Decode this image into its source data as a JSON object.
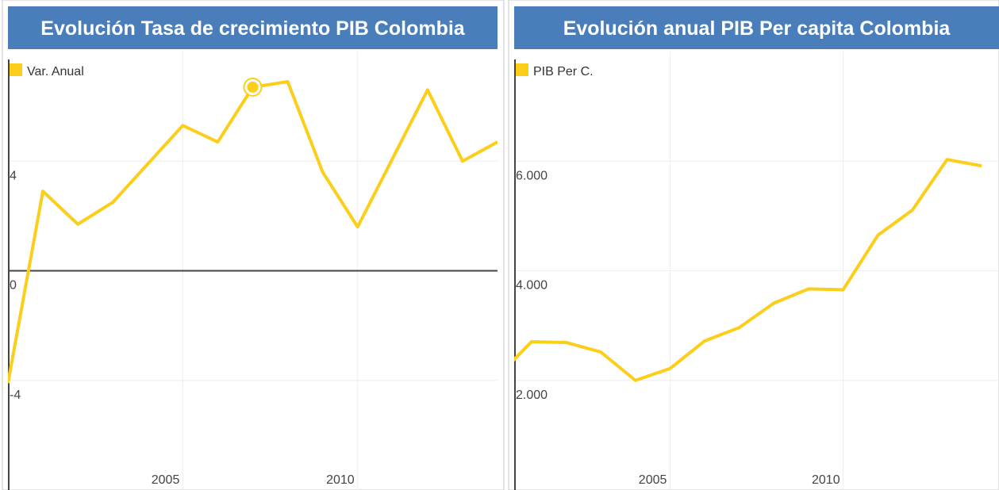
{
  "chart_data": [
    {
      "type": "line",
      "title": "Evolución Tasa de crecimiento PIB Colombia",
      "x": [
        2000,
        2001,
        2002,
        2003,
        2004,
        2005,
        2006,
        2007,
        2008,
        2009,
        2010,
        2011,
        2012,
        2013,
        2014
      ],
      "series": [
        {
          "name": "Var. Anual",
          "color": "#fcce1a",
          "values": [
            -4.1,
            2.9,
            1.7,
            2.5,
            3.9,
            5.3,
            4.7,
            6.7,
            6.9,
            3.6,
            1.6,
            4.1,
            6.6,
            4.0,
            4.7
          ]
        }
      ],
      "xlim": [
        2000,
        2014
      ],
      "xticks": [
        2005,
        2010
      ],
      "ylim": [
        -8,
        8
      ],
      "yticks": [
        -4,
        0,
        4
      ],
      "grid": true,
      "highlight_index": 7,
      "legend": "top-left"
    },
    {
      "type": "line",
      "title": "Evolución anual PIB Per capita Colombia",
      "x": [
        2000,
        2001,
        2002,
        2003,
        2004,
        2005,
        2006,
        2007,
        2008,
        2009,
        2010,
        2011,
        2012,
        2013,
        2014
      ],
      "series": [
        {
          "name": "PIB Per C.",
          "color": "#fcce1a",
          "values": [
            2057,
            2705,
            2691,
            2518,
            2000,
            2216,
            2719,
            2964,
            3410,
            3669,
            3655,
            4647,
            5108,
            6029,
            5914
          ]
        }
      ],
      "xlim": [
        2000.5,
        2014.5
      ],
      "xticks": [
        2005,
        2010
      ],
      "ylim": [
        0,
        8000
      ],
      "yticks": [
        {
          "value": 2000,
          "label": "2.000"
        },
        {
          "value": 4000,
          "label": "4.000"
        },
        {
          "value": 6000,
          "label": "6.000"
        }
      ],
      "grid": true,
      "legend": "top-left"
    }
  ]
}
